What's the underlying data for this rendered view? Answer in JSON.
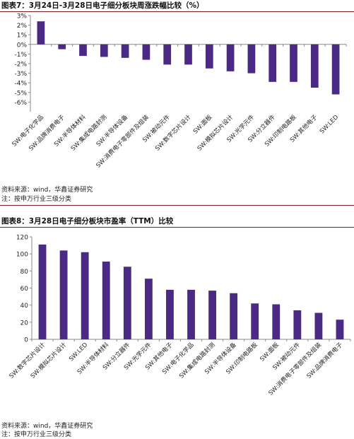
{
  "colors": {
    "bar": "#4b2a86",
    "axis": "#888888",
    "rule": "#7a1c1c"
  },
  "figure1": {
    "title": "图表7：3月24日-3月28日电子细分板块周涨跌幅比较（%）",
    "source": "资料来源：wind，华鑫证券研究",
    "note": "注：按申万行业三级分类"
  },
  "figure2": {
    "title": "图表8：3月28日电子细分板块市盈率（TTM）比较",
    "source": "资料来源：wind，华鑫证券研究",
    "note": "注：按申万行业三级分类"
  },
  "chart_data": [
    {
      "type": "bar",
      "title": "",
      "xlabel": "",
      "ylabel": "",
      "ylim": [
        -7,
        3
      ],
      "yticks": [
        3,
        2,
        1,
        0,
        -1,
        -2,
        -3,
        -4,
        -5,
        -6
      ],
      "ytick_labels": [
        "3%",
        "2%",
        "1%",
        "0%",
        "-1%",
        "-2%",
        "-3%",
        "-4%",
        "-5%",
        "-6%"
      ],
      "grid": false,
      "categories": [
        "SW:电子化学品",
        "SW:品牌消费电子",
        "SW:半导体材料",
        "SW:集成电路封测",
        "SW:半导体设备",
        "SW:消费电子零部件及组装",
        "SW:被动元件",
        "SW:数字芯片设计",
        "SW:面板",
        "SW:模拟芯片设计",
        "SW:光学元件",
        "SW:分立器件",
        "SW:印制电路板",
        "SW:其他电子",
        "SW:LED"
      ],
      "values": [
        2.4,
        -0.5,
        -1.2,
        -1.3,
        -1.4,
        -1.6,
        -2.1,
        -2.1,
        -2.5,
        -2.8,
        -3.0,
        -3.9,
        -3.9,
        -4.5,
        -5.2
      ]
    },
    {
      "type": "bar",
      "title": "",
      "xlabel": "",
      "ylabel": "",
      "ylim": [
        0,
        120
      ],
      "yticks": [
        0,
        20,
        40,
        60,
        80,
        100,
        120
      ],
      "ytick_labels": [
        "0",
        "20",
        "40",
        "60",
        "80",
        "100",
        "120"
      ],
      "grid": false,
      "categories": [
        "SW:数字芯片设计",
        "SW:模拟芯片设计",
        "SW:LED",
        "SW:半导体材料",
        "SW:分立器件",
        "SW:光学元件",
        "SW:其他电子",
        "SW:电子化学品",
        "SW:集成电路封测",
        "SW:半导体设备",
        "SW:印制电路板",
        "SW:面板",
        "SW:被动元件",
        "SW:消费电子零部件及组装",
        "SW:品牌消费电子"
      ],
      "values": [
        111,
        104,
        102,
        91,
        85,
        71,
        58,
        58,
        57,
        54,
        42,
        41,
        34,
        31,
        23
      ]
    }
  ]
}
